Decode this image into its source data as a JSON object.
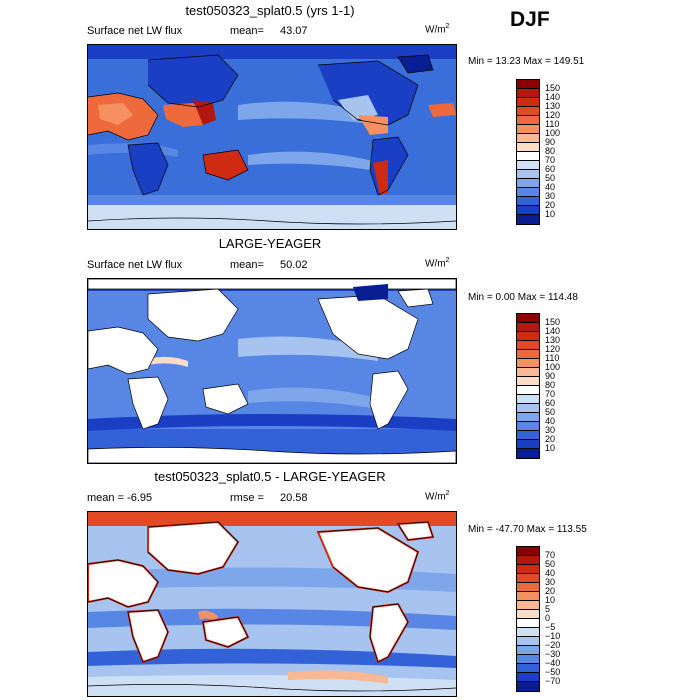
{
  "season": "DJF",
  "panels": [
    {
      "title": "test050323_splat0.5 (yrs 1-1)",
      "left_label": "Surface net LW flux",
      "stat_label": "mean=",
      "stat_value": "43.07",
      "units": "W/m",
      "units_exp": "2",
      "minmax": "Min =  13.23 Max = 149.51",
      "levels": [
        "150",
        "140",
        "130",
        "120",
        "110",
        "100",
        "90",
        "80",
        "70",
        "60",
        "50",
        "40",
        "30",
        "20",
        "10"
      ],
      "colors": [
        "#8b0000",
        "#b2180f",
        "#cf2a12",
        "#e14a22",
        "#ee6a3c",
        "#f59160",
        "#f8b893",
        "#fbdcc4",
        "#ffffff",
        "#cfe0f5",
        "#a6c4ef",
        "#7ea6ea",
        "#5786e4",
        "#3362d8",
        "#1a3fc4",
        "#0a1e93"
      ]
    },
    {
      "title": "LARGE-YEAGER",
      "left_label": "Surface net LW flux",
      "stat_label": "mean=",
      "stat_value": "50.02",
      "units": "W/m",
      "units_exp": "2",
      "minmax": "Min =   0.00 Max = 114.48",
      "levels": [
        "150",
        "140",
        "130",
        "120",
        "110",
        "100",
        "90",
        "80",
        "70",
        "60",
        "50",
        "40",
        "30",
        "20",
        "10"
      ],
      "colors": [
        "#8b0000",
        "#b2180f",
        "#cf2a12",
        "#e14a22",
        "#ee6a3c",
        "#f59160",
        "#f8b893",
        "#fbdcc4",
        "#ffffff",
        "#cfe0f5",
        "#a6c4ef",
        "#7ea6ea",
        "#5786e4",
        "#3362d8",
        "#1a3fc4",
        "#0a1e93"
      ]
    },
    {
      "title": "test050323_splat0.5 - LARGE-YEAGER",
      "left_label": "mean =   -6.95",
      "stat_label": "rmse =",
      "stat_value": "20.58",
      "units": "W/m",
      "units_exp": "2",
      "minmax": "Min = -47.70 Max = 113.55",
      "levels": [
        "70",
        "50",
        "40",
        "30",
        "20",
        "10",
        "5",
        "0",
        "−5",
        "−10",
        "−20",
        "−30",
        "−40",
        "−50",
        "−70"
      ],
      "colors": [
        "#8b0000",
        "#b2180f",
        "#cf2a12",
        "#e14a22",
        "#ee6a3c",
        "#f59160",
        "#f8b893",
        "#fbdcc4",
        "#ffffff",
        "#cfe0f5",
        "#a6c4ef",
        "#7ea6ea",
        "#5786e4",
        "#3362d8",
        "#1a3fc4",
        "#0a1e93"
      ]
    }
  ]
}
